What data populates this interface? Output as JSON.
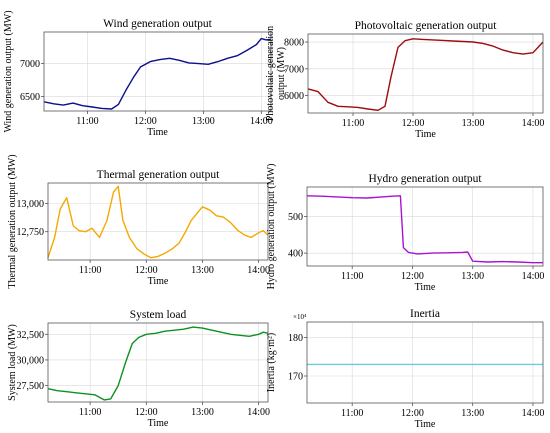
{
  "chart_data": [
    {
      "type": "line",
      "title": "Wind generation output",
      "xlabel": "Time",
      "ylabel": "Wind generation output (MW)",
      "xlim": [
        "10:15",
        "14:10"
      ],
      "ylim": [
        6280,
        7480
      ],
      "xticks": [
        "11:00",
        "12:00",
        "13:00",
        "14:00"
      ],
      "yticks": [
        6500,
        7000
      ],
      "ytick_labels": [
        "6500",
        "7000"
      ],
      "series": [
        {
          "color": "#0a108a",
          "x": [
            "10:15",
            "10:25",
            "10:35",
            "10:45",
            "10:55",
            "11:05",
            "11:15",
            "11:25",
            "11:32",
            "11:40",
            "11:48",
            "11:55",
            "12:05",
            "12:15",
            "12:25",
            "12:35",
            "12:45",
            "12:55",
            "13:05",
            "13:15",
            "13:25",
            "13:35",
            "13:45",
            "13:55",
            "14:00",
            "14:05",
            "14:10"
          ],
          "values": [
            6420,
            6390,
            6370,
            6400,
            6360,
            6340,
            6320,
            6310,
            6380,
            6600,
            6800,
            6950,
            7030,
            7060,
            7080,
            7050,
            7010,
            7000,
            6990,
            7030,
            7080,
            7120,
            7200,
            7290,
            7380,
            7360,
            7370
          ]
        }
      ]
    },
    {
      "type": "line",
      "title": "Photovoltaic generation output",
      "xlabel": "Time",
      "ylabel": "Photovoltaic generation output (MW)",
      "xlim": [
        "10:15",
        "14:10"
      ],
      "ylim": [
        5350,
        8300
      ],
      "xticks": [
        "11:00",
        "12:00",
        "13:00",
        "14:00"
      ],
      "yticks": [
        6000,
        7000,
        8000
      ],
      "ytick_labels": [
        "6000",
        "7000",
        "8000"
      ],
      "series": [
        {
          "color": "#9e0c0c",
          "x": [
            "10:15",
            "10:25",
            "10:35",
            "10:45",
            "10:55",
            "11:05",
            "11:15",
            "11:25",
            "11:32",
            "11:38",
            "11:45",
            "11:52",
            "12:00",
            "12:10",
            "12:20",
            "12:30",
            "12:40",
            "12:50",
            "13:00",
            "13:10",
            "13:20",
            "13:30",
            "13:40",
            "13:50",
            "14:00",
            "14:05",
            "14:10"
          ],
          "values": [
            6250,
            6150,
            5750,
            5600,
            5580,
            5560,
            5500,
            5450,
            5600,
            6700,
            7800,
            8050,
            8120,
            8100,
            8080,
            8060,
            8040,
            8020,
            8000,
            7950,
            7850,
            7700,
            7600,
            7550,
            7600,
            7800,
            8000
          ]
        }
      ]
    },
    {
      "type": "line",
      "title": "Thermal generation output",
      "xlabel": "Time",
      "ylabel": "Thermal generation output (MW)",
      "xlim": [
        "10:15",
        "14:10"
      ],
      "ylim": [
        12500,
        13180
      ],
      "xticks": [
        "11:00",
        "12:00",
        "13:00",
        "14:00"
      ],
      "yticks": [
        12750,
        13000
      ],
      "ytick_labels": [
        "12,750",
        "13,000"
      ],
      "series": [
        {
          "color": "#f5a800",
          "x": [
            "10:15",
            "10:22",
            "10:28",
            "10:35",
            "10:42",
            "10:48",
            "10:55",
            "11:02",
            "11:10",
            "11:18",
            "11:25",
            "11:30",
            "11:35",
            "11:42",
            "11:50",
            "11:58",
            "12:05",
            "12:12",
            "12:20",
            "12:28",
            "12:35",
            "12:42",
            "12:48",
            "12:55",
            "13:00",
            "13:08",
            "13:15",
            "13:22",
            "13:30",
            "13:38",
            "13:45",
            "13:52",
            "14:00",
            "14:05",
            "14:10"
          ],
          "values": [
            12520,
            12700,
            12950,
            13050,
            12800,
            12760,
            12750,
            12780,
            12700,
            12850,
            13100,
            13150,
            12850,
            12700,
            12600,
            12550,
            12520,
            12530,
            12560,
            12600,
            12650,
            12750,
            12850,
            12920,
            12970,
            12940,
            12890,
            12880,
            12830,
            12760,
            12720,
            12700,
            12740,
            12760,
            12720
          ]
        }
      ]
    },
    {
      "type": "line",
      "title": "Hydro generation output",
      "xlabel": "Time",
      "ylabel": "Hydro generation output (MW)",
      "xlim": [
        "10:15",
        "14:10"
      ],
      "ylim": [
        365,
        580
      ],
      "xticks": [
        "11:00",
        "12:00",
        "13:00",
        "14:00"
      ],
      "yticks": [
        400,
        500
      ],
      "ytick_labels": [
        "400",
        "500"
      ],
      "series": [
        {
          "color": "#aa11d4",
          "x": [
            "10:15",
            "10:30",
            "10:45",
            "11:00",
            "11:15",
            "11:30",
            "11:40",
            "11:48",
            "11:51",
            "11:56",
            "12:05",
            "12:20",
            "12:35",
            "12:50",
            "12:55",
            "13:00",
            "13:15",
            "13:30",
            "13:45",
            "14:00",
            "14:10"
          ],
          "values": [
            556,
            555,
            553,
            551,
            550,
            553,
            555,
            556,
            415,
            402,
            398,
            400,
            401,
            402,
            403,
            378,
            376,
            377,
            376,
            374,
            374
          ]
        }
      ]
    },
    {
      "type": "line",
      "title": "System load",
      "xlabel": "Time",
      "ylabel": "System load (MW)",
      "xlim": [
        "10:15",
        "14:10"
      ],
      "ylim": [
        25900,
        33600
      ],
      "xticks": [
        "11:00",
        "12:00",
        "13:00",
        "14:00"
      ],
      "yticks": [
        27500,
        30000,
        32500
      ],
      "ytick_labels": [
        "27,500",
        "30,000",
        "32,500"
      ],
      "series": [
        {
          "color": "#10911f",
          "x": [
            "10:15",
            "10:25",
            "10:35",
            "10:45",
            "10:55",
            "11:05",
            "11:15",
            "11:22",
            "11:30",
            "11:38",
            "11:45",
            "11:52",
            "12:00",
            "12:10",
            "12:20",
            "12:30",
            "12:40",
            "12:50",
            "13:00",
            "13:10",
            "13:20",
            "13:30",
            "13:40",
            "13:50",
            "14:00",
            "14:05",
            "14:10"
          ],
          "values": [
            27200,
            27000,
            26900,
            26800,
            26700,
            26600,
            26100,
            26200,
            27500,
            29800,
            31600,
            32200,
            32500,
            32600,
            32800,
            32900,
            33000,
            33200,
            33100,
            32900,
            32700,
            32500,
            32400,
            32300,
            32500,
            32700,
            32600
          ]
        }
      ]
    },
    {
      "type": "line",
      "title": "Inertia",
      "xlabel": "Time",
      "ylabel": "Inertia (kg·m²)",
      "y_multiplier": "×10⁴",
      "xlim": [
        "10:15",
        "14:10"
      ],
      "ylim": [
        163,
        184
      ],
      "xticks": [
        "11:00",
        "12:00",
        "13:00",
        "14:00"
      ],
      "yticks": [
        170,
        180
      ],
      "ytick_labels": [
        "170",
        "180"
      ],
      "series": [
        {
          "color": "#6ec8e6",
          "x": [
            "10:15",
            "14:10"
          ],
          "values": [
            173,
            173
          ]
        }
      ]
    }
  ]
}
